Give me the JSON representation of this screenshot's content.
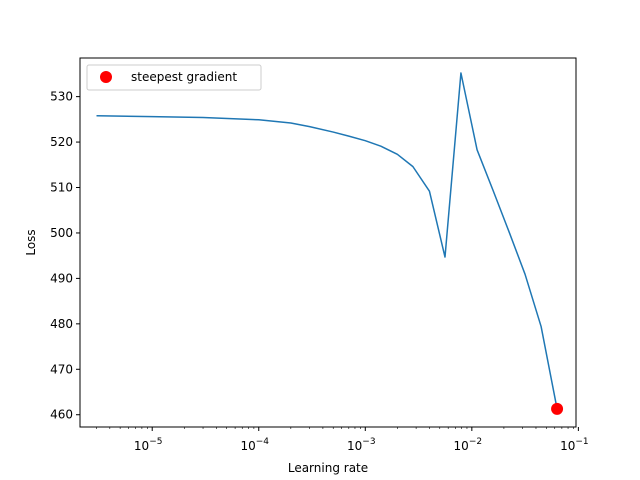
{
  "chart_data": {
    "type": "line",
    "title": "",
    "xlabel": "Learning rate",
    "ylabel": "Loss",
    "xscale": "log",
    "xlim": [
      2.1e-06,
      0.095
    ],
    "ylim": [
      457.3,
      538.5
    ],
    "grid": false,
    "legend": {
      "placement": "top-left",
      "entries": [
        "steepest gradient"
      ]
    },
    "x_ticks": [
      {
        "value": 1e-05,
        "base": "10",
        "exp": "−5"
      },
      {
        "value": 0.0001,
        "base": "10",
        "exp": "−4"
      },
      {
        "value": 0.001,
        "base": "10",
        "exp": "−3"
      },
      {
        "value": 0.01,
        "base": "10",
        "exp": "−2"
      },
      {
        "value": 0.1,
        "base": "10",
        "exp": "−1"
      }
    ],
    "y_ticks": [
      "460",
      "470",
      "480",
      "490",
      "500",
      "510",
      "520",
      "530"
    ],
    "series": [
      {
        "type": "line",
        "color": "#1f77b4",
        "x": [
          3e-06,
          1e-05,
          3e-05,
          0.0001,
          0.0002,
          0.0003,
          0.0005,
          0.0007,
          0.001,
          0.0014,
          0.002,
          0.0028,
          0.004,
          0.0056,
          0.0079,
          0.0112,
          0.0158,
          0.0224,
          0.0316,
          0.0447,
          0.0631
        ],
        "y": [
          525.8,
          525.6,
          525.4,
          524.9,
          524.2,
          523.4,
          522.2,
          521.3,
          520.3,
          519.1,
          517.3,
          514.6,
          509.2,
          494.7,
          535.2,
          518.3,
          509.4,
          500.2,
          490.9,
          479.4,
          461.3
        ]
      },
      {
        "type": "scatter",
        "name": "steepest gradient",
        "color": "#ff0000",
        "x": [
          0.0631
        ],
        "y": [
          461.3
        ]
      }
    ]
  }
}
